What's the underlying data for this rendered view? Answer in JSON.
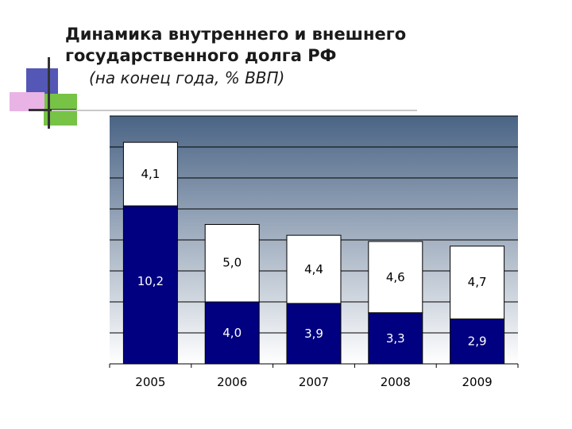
{
  "title": {
    "line1": "Динамика внутреннего и внешнего",
    "line2": "государственного долга РФ",
    "subtitle": "(на конец года, % ВВП)"
  },
  "colors": {
    "internal": "#000080",
    "external": "#ffffff",
    "plot_top": "#4a6485",
    "plot_bottom": "#ffffff",
    "deco_blue": "#5457b5",
    "deco_pink": "#e9b3e6",
    "deco_green": "#76c346"
  },
  "chart_data": {
    "type": "bar",
    "stacked": true,
    "categories": [
      "2005",
      "2006",
      "2007",
      "2008",
      "2009"
    ],
    "series": [
      {
        "values": [
          10.2,
          4.0,
          3.9,
          3.3,
          2.9
        ],
        "labels": [
          "10,2",
          "4,0",
          "3,9",
          "3,3",
          "2,9"
        ]
      },
      {
        "values": [
          4.1,
          5.0,
          4.4,
          4.6,
          4.7
        ],
        "labels": [
          "4,1",
          "5,0",
          "4,4",
          "4,6",
          "4,7"
        ]
      }
    ],
    "ylim": [
      0,
      16
    ],
    "grid": true,
    "xlabel": "",
    "ylabel": ""
  }
}
